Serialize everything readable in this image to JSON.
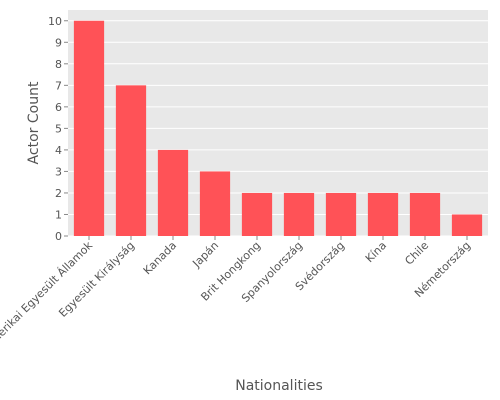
{
  "chart_data": {
    "type": "bar",
    "title": "",
    "xlabel": "Nationalities",
    "ylabel": "Actor Count",
    "categories": [
      "Amerikai Egyesült Államok",
      "Egyesült Királyság",
      "Kanada",
      "Japán",
      "Brit Hongkong",
      "Spanyolország",
      "Svédország",
      "Kína",
      "Chile",
      "Németország"
    ],
    "values": [
      10,
      7,
      4,
      3,
      2,
      2,
      2,
      2,
      2,
      1
    ],
    "ylim": [
      0,
      10.5
    ],
    "yticks": [
      0,
      1,
      2,
      3,
      4,
      5,
      6,
      7,
      8,
      9,
      10
    ],
    "grid": true,
    "legend": "none",
    "colors": {
      "bar": "#ff5257",
      "plot_background": "#e8e8e8",
      "grid": "#ffffff",
      "text": "#555555"
    }
  }
}
